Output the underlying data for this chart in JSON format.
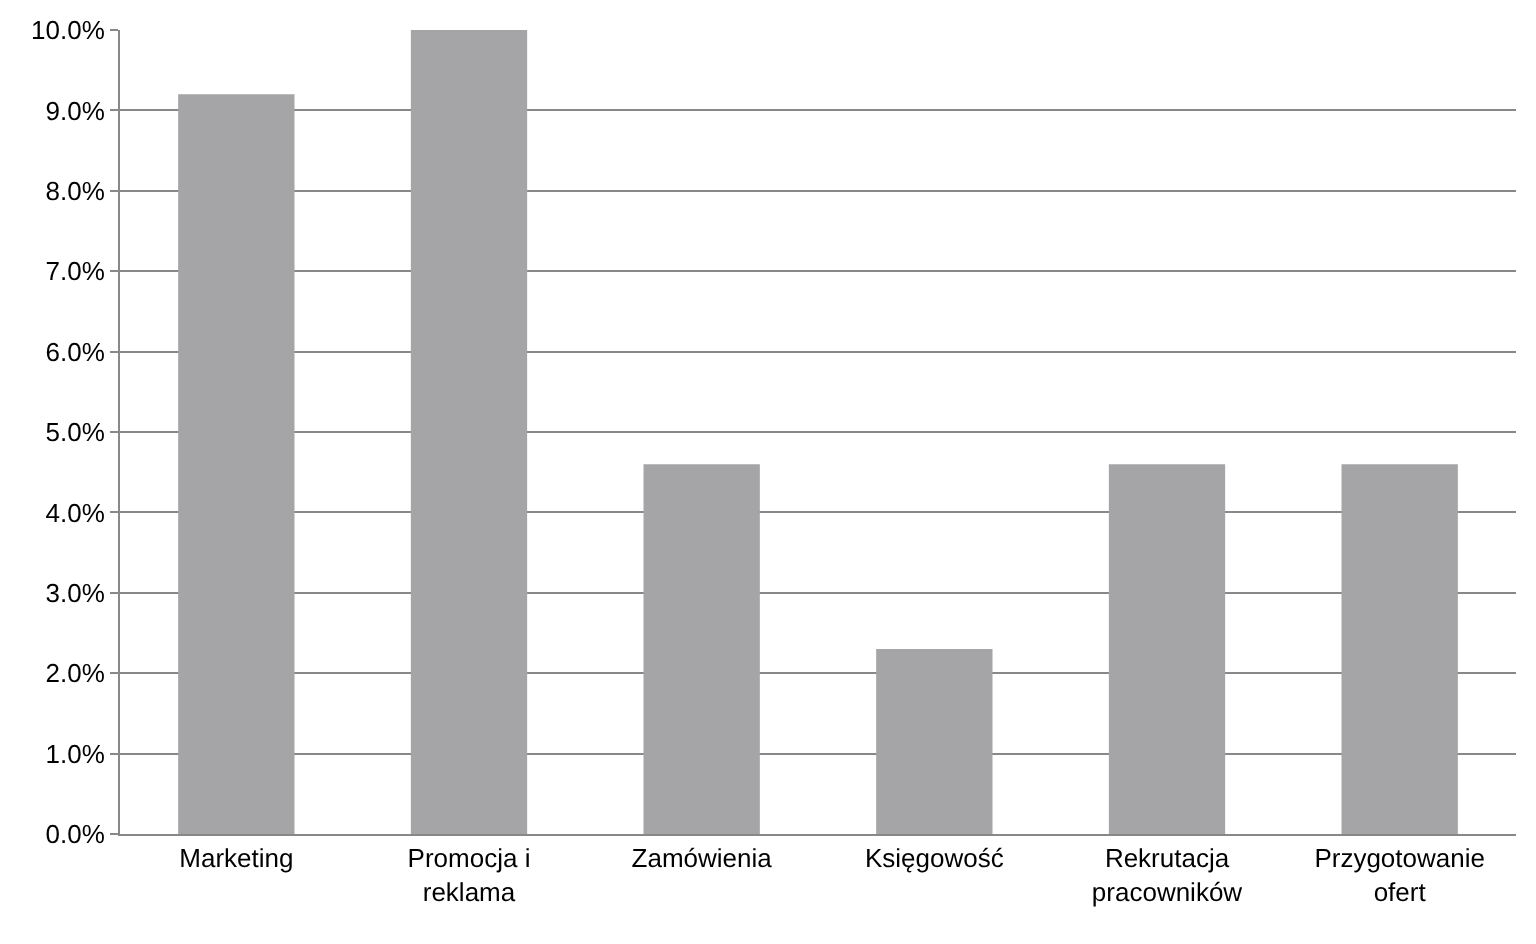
{
  "chart_data": {
    "type": "bar",
    "categories": [
      "Marketing",
      "Promocja i reklama",
      "Zamówienia",
      "Księgowość",
      "Rekrutacja pracowników",
      "Przygotowanie ofert"
    ],
    "values": [
      9.2,
      10.0,
      4.6,
      2.3,
      4.6,
      4.6
    ],
    "color": "#a5a5a7",
    "ylim": [
      0,
      10
    ],
    "yticks": [
      {
        "value": 0,
        "label": "0.0%"
      },
      {
        "value": 1,
        "label": "1.0%"
      },
      {
        "value": 2,
        "label": "2.0%"
      },
      {
        "value": 3,
        "label": "3.0%"
      },
      {
        "value": 4,
        "label": "4.0%"
      },
      {
        "value": 5,
        "label": "5.0%"
      },
      {
        "value": 6,
        "label": "6.0%"
      },
      {
        "value": 7,
        "label": "7.0%"
      },
      {
        "value": 8,
        "label": "8.0%"
      },
      {
        "value": 9,
        "label": "9.0%"
      },
      {
        "value": 10,
        "label": "10.0%"
      }
    ],
    "grid": "y"
  }
}
